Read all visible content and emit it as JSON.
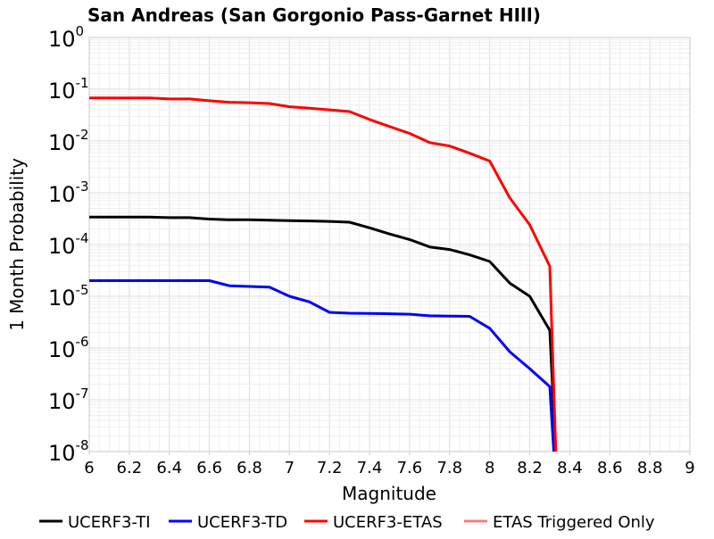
{
  "chart_data": {
    "type": "line",
    "title": "San Andreas (San Gorgonio Pass-Garnet HIll)",
    "xlabel": "Magnitude",
    "ylabel": "1 Month Probability",
    "xlim": [
      6,
      9
    ],
    "ylim": [
      1e-08,
      1
    ],
    "y_scale": "log",
    "grid": true,
    "legend_position": "bottom",
    "x_ticks": [
      "6",
      "6.2",
      "6.4",
      "6.6",
      "6.8",
      "7",
      "7.2",
      "7.4",
      "7.6",
      "7.8",
      "8",
      "8.2",
      "8.4",
      "8.6",
      "8.8",
      "9"
    ],
    "y_ticks": [
      {
        "base": "10",
        "exp": "0"
      },
      {
        "base": "10",
        "exp": "-1"
      },
      {
        "base": "10",
        "exp": "-2"
      },
      {
        "base": "10",
        "exp": "-3"
      },
      {
        "base": "10",
        "exp": "-4"
      },
      {
        "base": "10",
        "exp": "-5"
      },
      {
        "base": "10",
        "exp": "-6"
      },
      {
        "base": "10",
        "exp": "-7"
      },
      {
        "base": "10",
        "exp": "-8"
      }
    ],
    "series": [
      {
        "name": "UCERF3-TI",
        "color": "#000000",
        "x": [
          6.0,
          6.1,
          6.2,
          6.3,
          6.4,
          6.5,
          6.6,
          6.7,
          6.8,
          6.9,
          7.0,
          7.1,
          7.2,
          7.3,
          7.4,
          7.5,
          7.6,
          7.7,
          7.8,
          7.9,
          8.0,
          8.1,
          8.2,
          8.3,
          8.33
        ],
        "y": [
          0.00034,
          0.00034,
          0.00034,
          0.00034,
          0.00033,
          0.00033,
          0.00031,
          0.0003,
          0.0003,
          0.000295,
          0.00029,
          0.000285,
          0.00028,
          0.00027,
          0.00021,
          0.00016,
          0.000125,
          9e-05,
          8e-05,
          6.3e-05,
          4.7e-05,
          1.8e-05,
          1e-05,
          2.2e-06,
          1e-08
        ]
      },
      {
        "name": "UCERF3-TD",
        "color": "#0000ff",
        "x": [
          6.0,
          6.1,
          6.2,
          6.3,
          6.4,
          6.5,
          6.6,
          6.7,
          6.8,
          6.9,
          7.0,
          7.1,
          7.2,
          7.3,
          7.4,
          7.5,
          7.6,
          7.7,
          7.8,
          7.9,
          8.0,
          8.1,
          8.2,
          8.3,
          8.32
        ],
        "y": [
          2e-05,
          2e-05,
          2e-05,
          2e-05,
          2e-05,
          2e-05,
          2e-05,
          1.6e-05,
          1.55e-05,
          1.5e-05,
          1e-05,
          7.8e-06,
          4.9e-06,
          4.7e-06,
          4.65e-06,
          4.6e-06,
          4.5e-06,
          4.2e-06,
          4.15e-06,
          4.1e-06,
          2.4e-06,
          8.5e-07,
          4e-07,
          1.8e-07,
          1e-08
        ]
      },
      {
        "name": "UCERF3-ETAS",
        "color": "#ff0000",
        "x": [
          6.0,
          6.1,
          6.2,
          6.3,
          6.4,
          6.5,
          6.6,
          6.7,
          6.8,
          6.9,
          7.0,
          7.1,
          7.2,
          7.3,
          7.4,
          7.5,
          7.6,
          7.7,
          7.8,
          7.9,
          8.0,
          8.1,
          8.2,
          8.3,
          8.33
        ],
        "y": [
          0.068,
          0.068,
          0.068,
          0.068,
          0.065,
          0.065,
          0.06,
          0.056,
          0.055,
          0.053,
          0.046,
          0.043,
          0.04,
          0.037,
          0.026,
          0.019,
          0.014,
          0.0093,
          0.008,
          0.0058,
          0.0041,
          0.0008,
          0.00024,
          3.8e-05,
          1e-08
        ]
      },
      {
        "name": "ETAS Triggered Only",
        "color": "#f08080",
        "x": [],
        "y": []
      }
    ]
  }
}
